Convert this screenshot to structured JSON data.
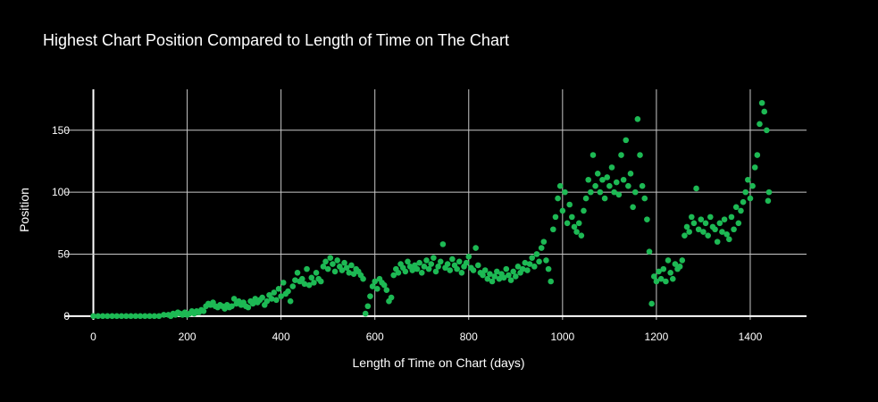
{
  "chart_data": {
    "type": "scatter",
    "title": "Highest Chart Position Compared to Length of Time on The Chart",
    "xlabel": "Length of Time on Chart (days)",
    "ylabel": "Position",
    "xlim": [
      -60,
      1520
    ],
    "ylim": [
      -3,
      183
    ],
    "xticks": [
      0,
      200,
      400,
      600,
      800,
      1000,
      1200,
      1400
    ],
    "yticks": [
      0,
      50,
      100,
      150
    ],
    "grid": true,
    "marker_color": "#1db954",
    "background": "#000000",
    "series": [
      {
        "points": [
          [
            0,
            0
          ],
          [
            10,
            0
          ],
          [
            20,
            0
          ],
          [
            30,
            0
          ],
          [
            40,
            0
          ],
          [
            50,
            0
          ],
          [
            60,
            0
          ],
          [
            70,
            0
          ],
          [
            80,
            0
          ],
          [
            90,
            0
          ],
          [
            100,
            0
          ],
          [
            110,
            0
          ],
          [
            120,
            0
          ],
          [
            130,
            0
          ],
          [
            140,
            0
          ],
          [
            150,
            1
          ],
          [
            160,
            1
          ],
          [
            165,
            0
          ],
          [
            170,
            2
          ],
          [
            175,
            1
          ],
          [
            180,
            3
          ],
          [
            185,
            2
          ],
          [
            190,
            1
          ],
          [
            195,
            3
          ],
          [
            200,
            1
          ],
          [
            205,
            2
          ],
          [
            210,
            4
          ],
          [
            215,
            2
          ],
          [
            220,
            4
          ],
          [
            225,
            3
          ],
          [
            230,
            5
          ],
          [
            235,
            4
          ],
          [
            240,
            8
          ],
          [
            245,
            10
          ],
          [
            250,
            9
          ],
          [
            255,
            11
          ],
          [
            260,
            8
          ],
          [
            265,
            7
          ],
          [
            270,
            9
          ],
          [
            275,
            8
          ],
          [
            280,
            6
          ],
          [
            285,
            9
          ],
          [
            290,
            7
          ],
          [
            295,
            8
          ],
          [
            300,
            14
          ],
          [
            305,
            10
          ],
          [
            310,
            12
          ],
          [
            315,
            9
          ],
          [
            320,
            11
          ],
          [
            325,
            8
          ],
          [
            330,
            7
          ],
          [
            335,
            12
          ],
          [
            340,
            10
          ],
          [
            345,
            14
          ],
          [
            350,
            11
          ],
          [
            355,
            13
          ],
          [
            360,
            15
          ],
          [
            365,
            9
          ],
          [
            370,
            12
          ],
          [
            375,
            17
          ],
          [
            380,
            14
          ],
          [
            385,
            19
          ],
          [
            390,
            13
          ],
          [
            395,
            22
          ],
          [
            400,
            16
          ],
          [
            405,
            27
          ],
          [
            410,
            18
          ],
          [
            415,
            20
          ],
          [
            420,
            12
          ],
          [
            425,
            24
          ],
          [
            430,
            29
          ],
          [
            435,
            35
          ],
          [
            440,
            28
          ],
          [
            445,
            30
          ],
          [
            450,
            26
          ],
          [
            455,
            38
          ],
          [
            460,
            25
          ],
          [
            465,
            31
          ],
          [
            470,
            27
          ],
          [
            475,
            35
          ],
          [
            480,
            30
          ],
          [
            485,
            28
          ],
          [
            490,
            40
          ],
          [
            495,
            44
          ],
          [
            500,
            38
          ],
          [
            505,
            47
          ],
          [
            510,
            42
          ],
          [
            515,
            36
          ],
          [
            520,
            45
          ],
          [
            525,
            40
          ],
          [
            530,
            37
          ],
          [
            535,
            43
          ],
          [
            540,
            39
          ],
          [
            545,
            35
          ],
          [
            550,
            41
          ],
          [
            555,
            34
          ],
          [
            560,
            38
          ],
          [
            565,
            36
          ],
          [
            570,
            33
          ],
          [
            575,
            30
          ],
          [
            580,
            2
          ],
          [
            585,
            8
          ],
          [
            590,
            16
          ],
          [
            595,
            24
          ],
          [
            600,
            28
          ],
          [
            605,
            22
          ],
          [
            610,
            30
          ],
          [
            615,
            27
          ],
          [
            620,
            25
          ],
          [
            625,
            21
          ],
          [
            630,
            12
          ],
          [
            635,
            15
          ],
          [
            640,
            33
          ],
          [
            645,
            38
          ],
          [
            650,
            35
          ],
          [
            655,
            42
          ],
          [
            660,
            39
          ],
          [
            665,
            36
          ],
          [
            670,
            44
          ],
          [
            675,
            40
          ],
          [
            680,
            37
          ],
          [
            685,
            41
          ],
          [
            690,
            38
          ],
          [
            695,
            43
          ],
          [
            700,
            35
          ],
          [
            705,
            40
          ],
          [
            710,
            45
          ],
          [
            715,
            38
          ],
          [
            720,
            42
          ],
          [
            725,
            47
          ],
          [
            730,
            36
          ],
          [
            735,
            40
          ],
          [
            740,
            44
          ],
          [
            745,
            58
          ],
          [
            750,
            39
          ],
          [
            755,
            42
          ],
          [
            760,
            37
          ],
          [
            765,
            46
          ],
          [
            770,
            41
          ],
          [
            775,
            38
          ],
          [
            780,
            44
          ],
          [
            785,
            35
          ],
          [
            790,
            40
          ],
          [
            795,
            43
          ],
          [
            800,
            48
          ],
          [
            805,
            39
          ],
          [
            810,
            37
          ],
          [
            815,
            55
          ],
          [
            820,
            41
          ],
          [
            825,
            35
          ],
          [
            830,
            33
          ],
          [
            835,
            37
          ],
          [
            840,
            30
          ],
          [
            845,
            34
          ],
          [
            850,
            28
          ],
          [
            855,
            32
          ],
          [
            860,
            36
          ],
          [
            865,
            30
          ],
          [
            870,
            34
          ],
          [
            875,
            31
          ],
          [
            880,
            38
          ],
          [
            885,
            33
          ],
          [
            890,
            29
          ],
          [
            895,
            36
          ],
          [
            900,
            32
          ],
          [
            905,
            40
          ],
          [
            910,
            35
          ],
          [
            915,
            38
          ],
          [
            920,
            43
          ],
          [
            925,
            37
          ],
          [
            930,
            42
          ],
          [
            935,
            47
          ],
          [
            940,
            40
          ],
          [
            945,
            50
          ],
          [
            950,
            44
          ],
          [
            955,
            55
          ],
          [
            960,
            60
          ],
          [
            965,
            45
          ],
          [
            970,
            38
          ],
          [
            975,
            28
          ],
          [
            980,
            70
          ],
          [
            985,
            80
          ],
          [
            990,
            95
          ],
          [
            995,
            105
          ],
          [
            1000,
            85
          ],
          [
            1005,
            100
          ],
          [
            1010,
            75
          ],
          [
            1015,
            90
          ],
          [
            1020,
            80
          ],
          [
            1025,
            72
          ],
          [
            1030,
            68
          ],
          [
            1035,
            75
          ],
          [
            1040,
            65
          ],
          [
            1045,
            85
          ],
          [
            1050,
            95
          ],
          [
            1055,
            110
          ],
          [
            1060,
            100
          ],
          [
            1065,
            130
          ],
          [
            1070,
            105
          ],
          [
            1075,
            115
          ],
          [
            1080,
            100
          ],
          [
            1085,
            110
          ],
          [
            1090,
            95
          ],
          [
            1095,
            112
          ],
          [
            1100,
            105
          ],
          [
            1105,
            120
          ],
          [
            1110,
            100
          ],
          [
            1115,
            108
          ],
          [
            1120,
            98
          ],
          [
            1125,
            130
          ],
          [
            1130,
            110
          ],
          [
            1135,
            142
          ],
          [
            1140,
            105
          ],
          [
            1145,
            115
          ],
          [
            1150,
            88
          ],
          [
            1155,
            100
          ],
          [
            1160,
            159
          ],
          [
            1165,
            130
          ],
          [
            1170,
            105
          ],
          [
            1175,
            95
          ],
          [
            1180,
            78
          ],
          [
            1185,
            52
          ],
          [
            1190,
            10
          ],
          [
            1195,
            32
          ],
          [
            1200,
            28
          ],
          [
            1205,
            36
          ],
          [
            1210,
            30
          ],
          [
            1215,
            38
          ],
          [
            1220,
            28
          ],
          [
            1225,
            45
          ],
          [
            1230,
            35
          ],
          [
            1235,
            30
          ],
          [
            1240,
            42
          ],
          [
            1245,
            38
          ],
          [
            1250,
            40
          ],
          [
            1255,
            45
          ],
          [
            1260,
            65
          ],
          [
            1265,
            72
          ],
          [
            1270,
            68
          ],
          [
            1275,
            80
          ],
          [
            1280,
            75
          ],
          [
            1285,
            103
          ],
          [
            1290,
            70
          ],
          [
            1295,
            78
          ],
          [
            1300,
            68
          ],
          [
            1305,
            75
          ],
          [
            1310,
            65
          ],
          [
            1315,
            80
          ],
          [
            1320,
            72
          ],
          [
            1325,
            70
          ],
          [
            1330,
            60
          ],
          [
            1335,
            75
          ],
          [
            1340,
            68
          ],
          [
            1345,
            78
          ],
          [
            1350,
            66
          ],
          [
            1355,
            62
          ],
          [
            1360,
            80
          ],
          [
            1365,
            70
          ],
          [
            1370,
            88
          ],
          [
            1375,
            75
          ],
          [
            1380,
            85
          ],
          [
            1385,
            92
          ],
          [
            1390,
            100
          ],
          [
            1395,
            110
          ],
          [
            1400,
            95
          ],
          [
            1405,
            105
          ],
          [
            1410,
            120
          ],
          [
            1415,
            130
          ],
          [
            1420,
            155
          ],
          [
            1425,
            172
          ],
          [
            1430,
            165
          ],
          [
            1435,
            150
          ],
          [
            1440,
            100
          ],
          [
            1438,
            93
          ]
        ]
      }
    ]
  }
}
